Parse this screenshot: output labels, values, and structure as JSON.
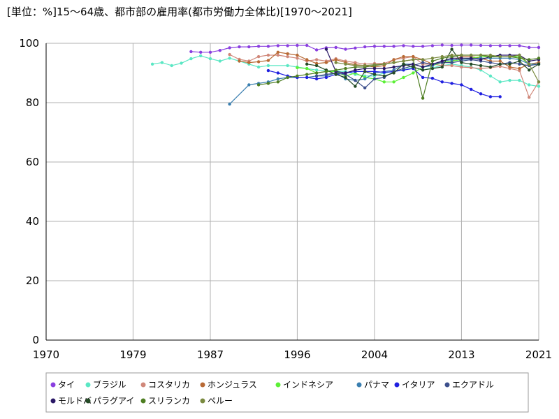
{
  "chart_data": {
    "type": "line",
    "title": "[単位：%]15～64歳、都市部の雇用率(都市労働力全体比)[1970～2021]",
    "xlabel": "",
    "ylabel": "",
    "xlim": [
      1970,
      2021
    ],
    "ylim": [
      0,
      100
    ],
    "x_ticks": [
      "1970",
      "1979",
      "1987",
      "1996",
      "2004",
      "2013",
      "2021"
    ],
    "y_ticks": [
      "0",
      "20",
      "40",
      "60",
      "80",
      "100"
    ],
    "grid": true,
    "legend_position": "bottom",
    "series": [
      {
        "name": "タイ",
        "color": "#8a3fe0",
        "x": [
          1985,
          1986,
          1987,
          1988,
          1989,
          1990,
          1991,
          1992,
          1993,
          1994,
          1995,
          1996,
          1997,
          1998,
          1999,
          2000,
          2001,
          2002,
          2003,
          2004,
          2005,
          2006,
          2007,
          2008,
          2009,
          2010,
          2011,
          2012,
          2013,
          2014,
          2015,
          2016,
          2017,
          2018,
          2019,
          2020,
          2021
        ],
        "y": [
          97.2,
          97.0,
          97.0,
          97.6,
          98.5,
          98.8,
          98.8,
          99.0,
          99.0,
          99.2,
          99.2,
          99.3,
          99.3,
          97.8,
          98.5,
          98.6,
          98.0,
          98.4,
          98.8,
          99.0,
          99.0,
          99.0,
          99.2,
          99.0,
          99.0,
          99.2,
          99.4,
          99.3,
          99.4,
          99.4,
          99.3,
          99.2,
          99.2,
          99.2,
          99.2,
          98.6,
          98.6
        ]
      },
      {
        "name": "ブラジル",
        "color": "#5be7c4",
        "x": [
          1981,
          1982,
          1983,
          1984,
          1985,
          1986,
          1987,
          1988,
          1989,
          1990,
          1991,
          1992,
          1993,
          1995,
          1996,
          1997,
          1998,
          1999,
          2001,
          2002,
          2003,
          2004,
          2005,
          2006,
          2007,
          2008,
          2009,
          2011,
          2012,
          2013,
          2014,
          2015,
          2016,
          2017,
          2018,
          2019,
          2020,
          2021
        ],
        "y": [
          93.0,
          93.5,
          92.5,
          93.3,
          94.8,
          95.8,
          94.8,
          94.0,
          95.0,
          94.0,
          93.0,
          92.0,
          92.5,
          92.5,
          92.0,
          91.5,
          91.0,
          90.8,
          90.5,
          89.5,
          89.0,
          89.0,
          90.0,
          90.5,
          91.0,
          92.0,
          91.0,
          92.5,
          93.0,
          92.5,
          92.0,
          91.0,
          89.0,
          87.0,
          87.5,
          87.5,
          86.0,
          85.5
        ]
      },
      {
        "name": "コスタリカ",
        "color": "#d0887a",
        "x": [
          1989,
          1990,
          1991,
          1992,
          1993,
          1994,
          1995,
          1996,
          1997,
          1998,
          1999,
          2000,
          2001,
          2002,
          2003,
          2004,
          2005,
          2006,
          2007,
          2008,
          2009,
          2010,
          2011,
          2012,
          2013,
          2014,
          2015,
          2016,
          2017,
          2018,
          2019,
          2020,
          2021
        ],
        "y": [
          96.2,
          94.6,
          94.0,
          95.5,
          96.0,
          96.0,
          95.5,
          95.0,
          94.0,
          94.5,
          94.0,
          94.8,
          94.0,
          93.5,
          93.0,
          93.2,
          93.2,
          94.5,
          95.0,
          95.5,
          93.0,
          93.0,
          92.5,
          92.5,
          92.0,
          91.8,
          91.5,
          91.8,
          92.2,
          91.5,
          90.8,
          81.8,
          87.0
        ]
      },
      {
        "name": "ホンジュラス",
        "color": "#b86a35",
        "x": [
          1990,
          1991,
          1992,
          1993,
          1994,
          1995,
          1996,
          1997,
          1998,
          1999,
          2000,
          2001,
          2002,
          2003,
          2004,
          2005,
          2006,
          2007,
          2008,
          2009,
          2010,
          2011,
          2012,
          2013,
          2014,
          2015,
          2016,
          2017,
          2018,
          2019,
          2020,
          2021
        ],
        "y": [
          94.0,
          93.5,
          93.8,
          94.2,
          97.0,
          96.5,
          96.0,
          94.5,
          93.2,
          93.5,
          94.5,
          93.5,
          92.8,
          92.5,
          92.0,
          92.5,
          94.5,
          95.5,
          95.5,
          94.5,
          93.0,
          93.5,
          94.0,
          95.5,
          95.5,
          95.0,
          94.0,
          94.0,
          92.0,
          91.5,
          93.0,
          93.5
        ]
      },
      {
        "name": "インドネシア",
        "color": "#5cf036",
        "x": [
          1996,
          1997,
          1998,
          1999,
          2000,
          2001,
          2002,
          2003,
          2004,
          2005,
          2006,
          2007,
          2008,
          2009,
          2010,
          2011,
          2012,
          2013,
          2014,
          2015,
          2016,
          2017,
          2018,
          2019,
          2020,
          2021
        ],
        "y": [
          91.8,
          91.5,
          90.0,
          90.5,
          90.5,
          89.0,
          90.0,
          88.5,
          88.0,
          87.0,
          87.0,
          88.5,
          90.0,
          92.0,
          92.5,
          93.5,
          94.0,
          94.5,
          95.0,
          95.5,
          95.5,
          95.5,
          95.5,
          95.5,
          93.0,
          93.0
        ]
      },
      {
        "name": "パナマ",
        "color": "#3a7fb0",
        "x": [
          1989,
          1991,
          1992,
          1993,
          1994,
          1995,
          1996,
          1997,
          1998,
          1999,
          2000,
          2001,
          2002,
          2003,
          2004,
          2005,
          2006,
          2007,
          2008,
          2009,
          2010,
          2011,
          2012,
          2013,
          2014,
          2015,
          2016,
          2017,
          2018,
          2019,
          2020,
          2021
        ],
        "y": [
          79.5,
          86.0,
          86.5,
          87.0,
          88.0,
          88.5,
          88.5,
          88.5,
          89.0,
          89.0,
          90.0,
          88.0,
          87.5,
          88.0,
          90.0,
          90.5,
          91.0,
          93.0,
          93.0,
          92.0,
          92.5,
          94.0,
          94.5,
          94.5,
          94.8,
          95.0,
          95.0,
          95.0,
          95.0,
          94.5,
          93.0,
          93.0
        ]
      },
      {
        "name": "イタリア",
        "color": "#2020e0",
        "x": [
          1993,
          1994,
          1995,
          1996,
          1997,
          1998,
          1999,
          2000,
          2001,
          2002,
          2003,
          2004,
          2005,
          2006,
          2007,
          2008,
          2009,
          2010,
          2011,
          2012,
          2013,
          2014,
          2015,
          2016,
          2017
        ],
        "y": [
          90.8,
          90.0,
          89.0,
          88.5,
          88.5,
          88.0,
          88.5,
          89.5,
          90.0,
          90.5,
          90.5,
          90.5,
          90.2,
          90.5,
          91.0,
          91.5,
          88.5,
          88.2,
          87.0,
          86.5,
          86.0,
          84.5,
          83.0,
          82.0,
          82.0
        ]
      },
      {
        "name": "エクアドル",
        "color": "#3c4f8c",
        "x": [
          1998,
          1999,
          2000,
          2001,
          2002,
          2003,
          2004,
          2005,
          2006,
          2007,
          2008,
          2009,
          2010,
          2011,
          2012,
          2013,
          2014,
          2015,
          2016,
          2017,
          2018,
          2019,
          2020,
          2021
        ],
        "y": [
          89.0,
          89.5,
          90.0,
          89.5,
          87.5,
          85.0,
          88.0,
          88.5,
          90.5,
          91.5,
          92.5,
          93.5,
          93.0,
          93.5,
          93.5,
          94.0,
          94.5,
          94.0,
          93.5,
          93.0,
          93.5,
          93.0,
          92.5,
          93.0
        ]
      },
      {
        "name": "モルドバ",
        "color": "#2a1866",
        "x": [
          1999,
          2000,
          2001,
          2002,
          2003,
          2004,
          2005,
          2006,
          2007,
          2008,
          2009,
          2010,
          2011,
          2012,
          2013,
          2014,
          2015,
          2016,
          2017,
          2018,
          2019,
          2020,
          2021
        ],
        "y": [
          98.0,
          90.5,
          90.0,
          91.0,
          91.5,
          91.5,
          91.5,
          92.0,
          92.5,
          93.0,
          92.0,
          93.0,
          94.0,
          95.0,
          95.0,
          95.0,
          94.5,
          95.5,
          96.0,
          96.0,
          96.0,
          94.0,
          94.5
        ]
      },
      {
        "name": "パラグアイ",
        "color": "#254b26",
        "x": [
          1997,
          1998,
          1999,
          2000,
          2001,
          2002,
          2003,
          2004,
          2005,
          2006,
          2007,
          2008,
          2009,
          2010,
          2011,
          2012,
          2013,
          2014,
          2015,
          2016,
          2017,
          2018,
          2019,
          2020,
          2021
        ],
        "y": [
          93.0,
          92.5,
          91.0,
          89.5,
          88.5,
          85.5,
          90.5,
          89.5,
          89.0,
          90.0,
          93.0,
          92.0,
          91.0,
          91.5,
          92.0,
          98.0,
          93.5,
          93.0,
          92.5,
          92.0,
          93.0,
          93.0,
          94.0,
          91.0,
          93.0
        ]
      },
      {
        "name": "スリランカ",
        "color": "#4e7e22",
        "x": [
          1992,
          1993,
          1994,
          1995,
          1996,
          1997,
          1998,
          1999,
          2000,
          2001,
          2002,
          2003,
          2004,
          2005,
          2006,
          2007,
          2008,
          2009,
          2010,
          2011,
          2012,
          2013,
          2014,
          2015,
          2016,
          2017,
          2018,
          2019,
          2020,
          2021
        ],
        "y": [
          86.0,
          86.5,
          87.0,
          88.5,
          89.0,
          89.5,
          90.0,
          90.5,
          91.0,
          91.5,
          92.0,
          92.0,
          92.5,
          93.0,
          93.5,
          94.0,
          94.5,
          81.5,
          94.0,
          95.0,
          95.5,
          96.0,
          96.0,
          96.0,
          95.5,
          95.5,
          95.5,
          95.0,
          94.5,
          95.0
        ]
      },
      {
        "name": "ペルー",
        "color": "#7a8a40",
        "x": [
          2000,
          2001,
          2002,
          2003,
          2004,
          2005,
          2006,
          2007,
          2008,
          2009,
          2010,
          2011,
          2012,
          2013,
          2014,
          2015,
          2016,
          2017,
          2018,
          2019,
          2020,
          2021
        ],
        "y": [
          93.5,
          93.0,
          92.5,
          92.5,
          92.8,
          93.0,
          93.5,
          94.0,
          94.5,
          94.5,
          95.0,
          95.5,
          96.0,
          96.0,
          96.0,
          96.0,
          96.0,
          95.5,
          95.5,
          96.0,
          93.0,
          87.0
        ]
      }
    ]
  }
}
